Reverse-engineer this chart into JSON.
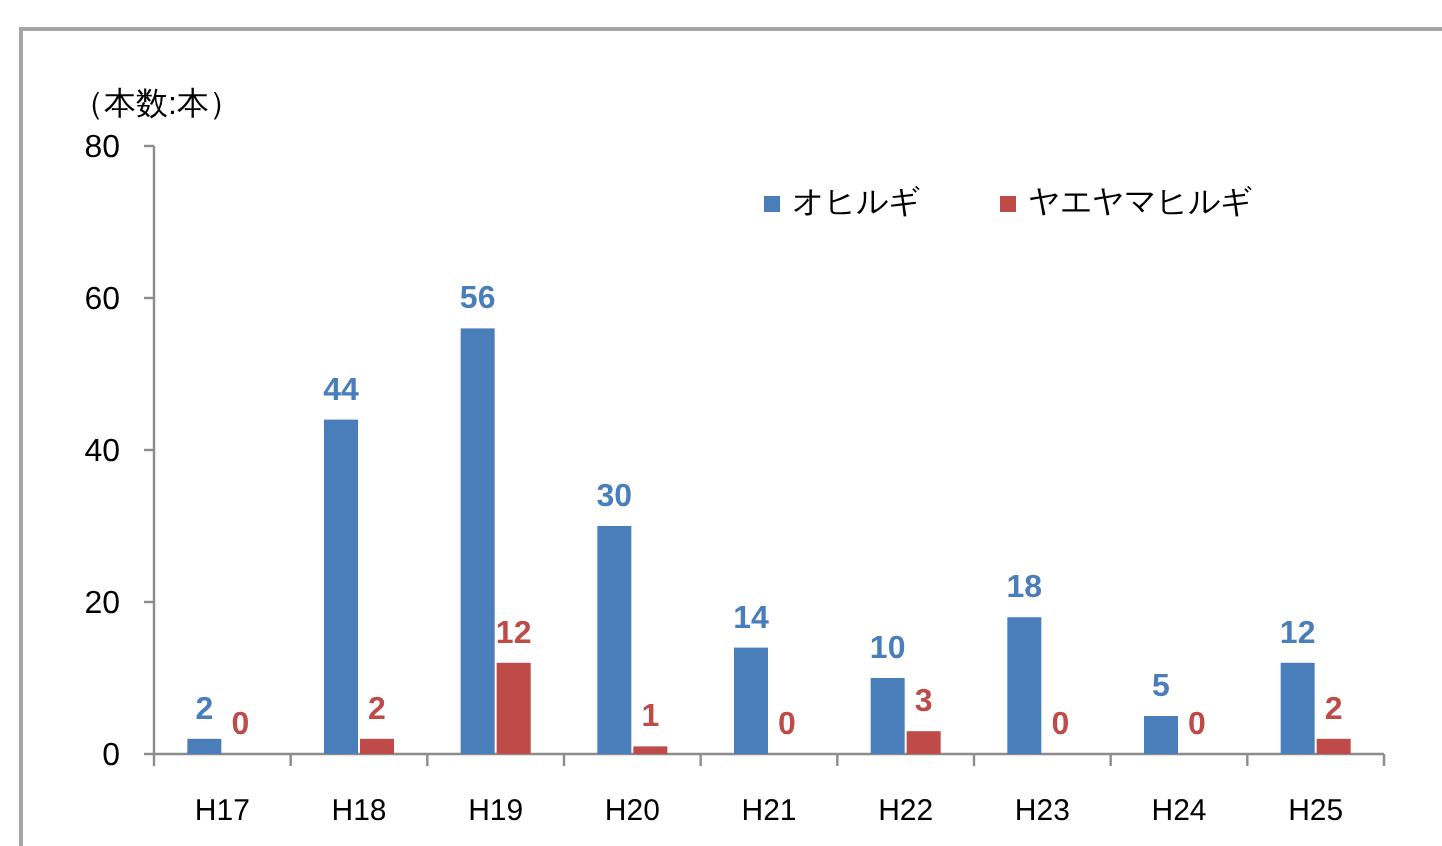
{
  "chart_data": {
    "type": "bar",
    "ylabel": "（本数:本）",
    "categories": [
      "H17",
      "H18",
      "H19",
      "H20",
      "H21",
      "H22",
      "H23",
      "H24",
      "H25"
    ],
    "series": [
      {
        "name": "オヒルギ",
        "color": "#4a7ebb",
        "values": [
          2,
          44,
          56,
          30,
          14,
          10,
          18,
          5,
          12
        ]
      },
      {
        "name": "ヤエヤマヒルギ",
        "color": "#be4b48",
        "values": [
          0,
          2,
          12,
          1,
          0,
          3,
          0,
          0,
          2
        ]
      }
    ],
    "ylim": [
      0,
      80
    ],
    "yticks": [
      0,
      20,
      40,
      60,
      80
    ],
    "legend": "top right",
    "data_labels": true
  }
}
